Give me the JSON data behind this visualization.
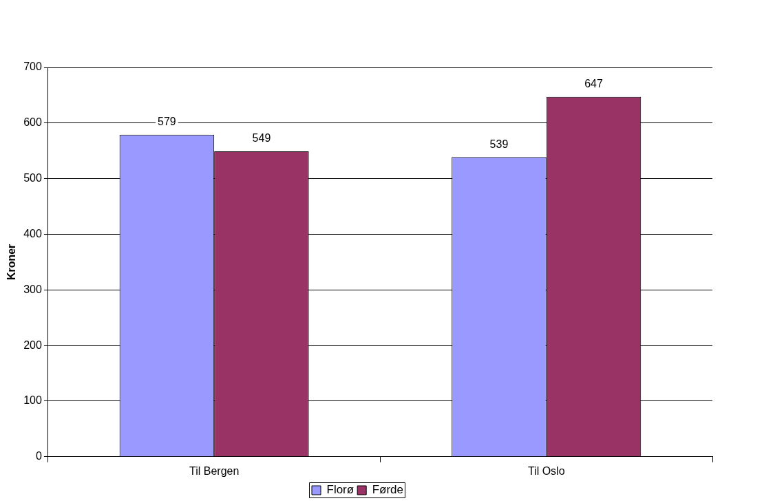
{
  "chart_data": {
    "type": "bar",
    "ylabel": "Kroner",
    "categories": [
      "Til Bergen",
      "Til Oslo"
    ],
    "series": [
      {
        "name": "Florø",
        "color": "#9999ff",
        "values": [
          579,
          539
        ]
      },
      {
        "name": "Førde",
        "color": "#993366",
        "values": [
          549,
          647
        ]
      }
    ],
    "ylim": [
      0,
      700
    ],
    "yticks": [
      0,
      100,
      200,
      300,
      400,
      500,
      600,
      700
    ],
    "grid": "y",
    "legend": "bottom",
    "data_labels": true
  }
}
